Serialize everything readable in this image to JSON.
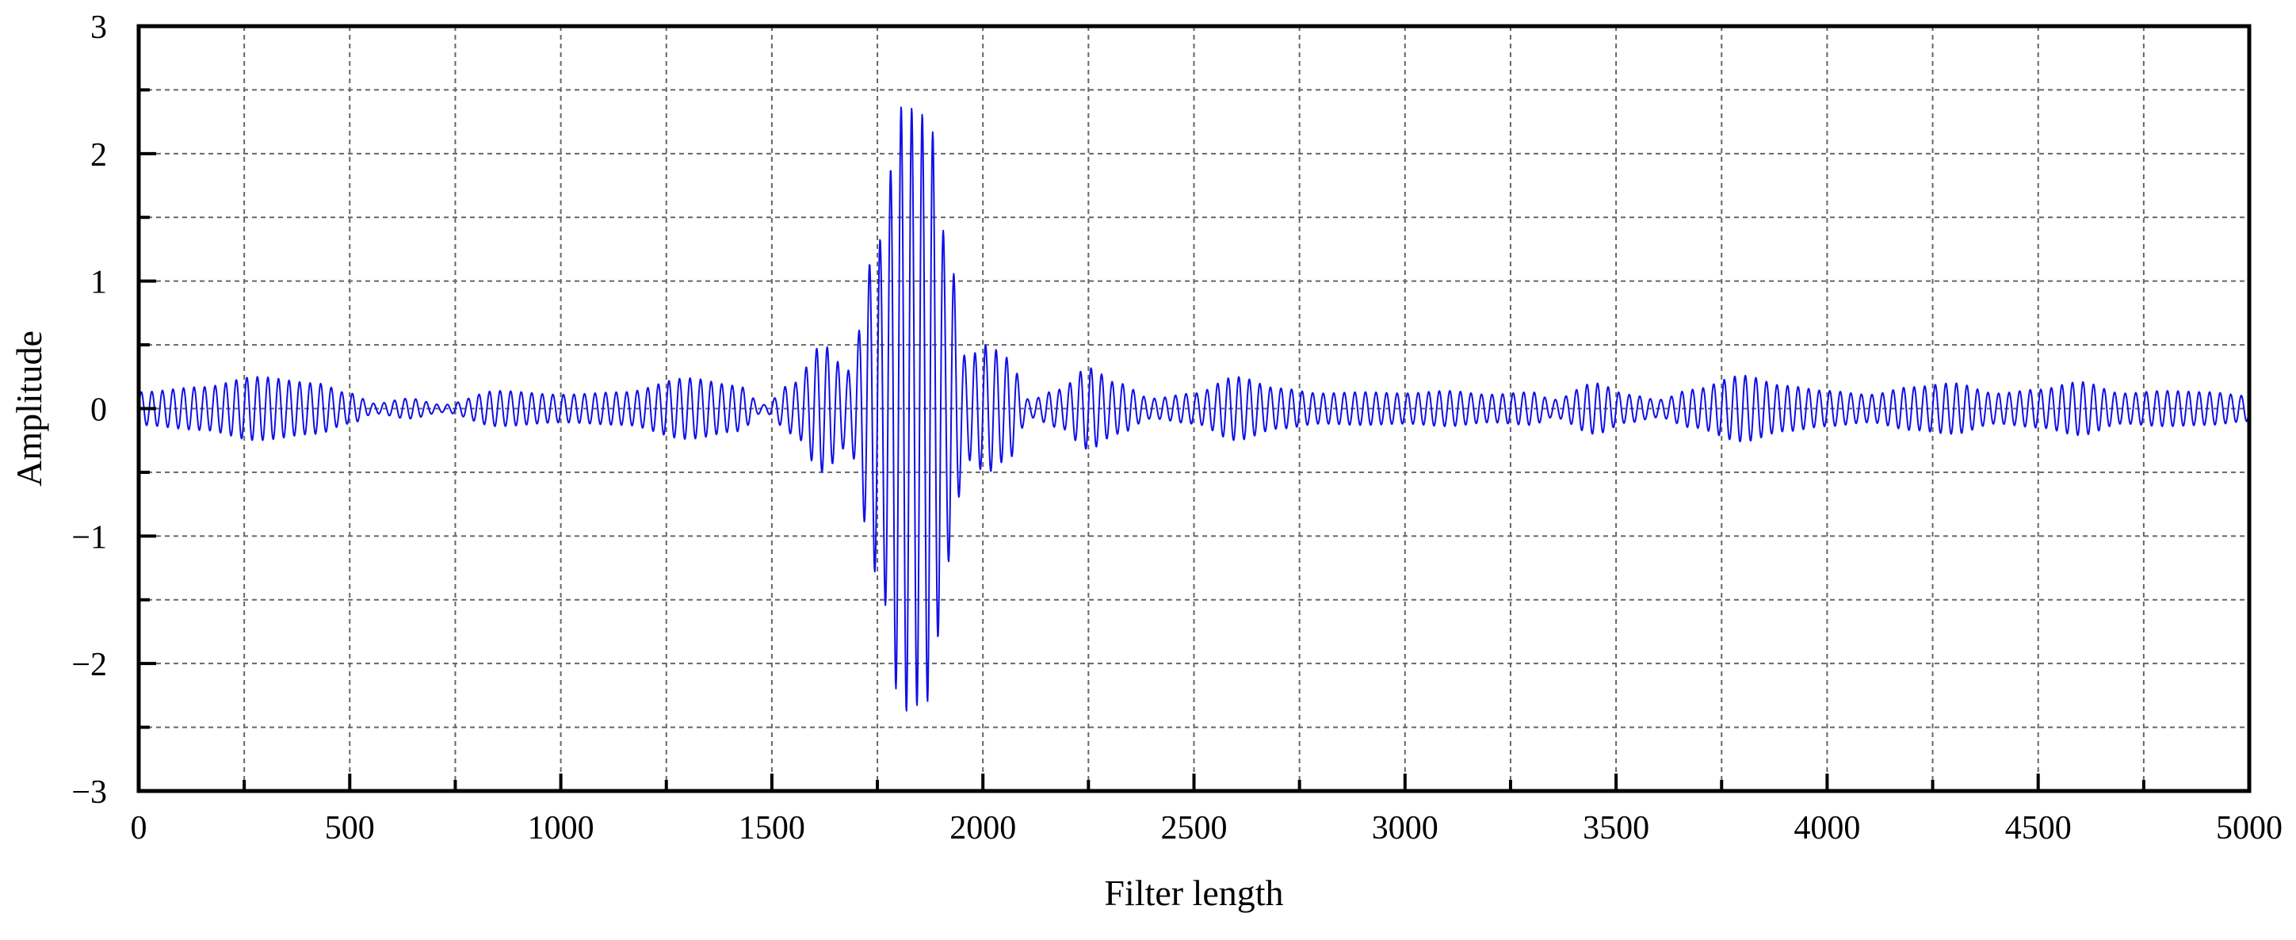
{
  "chart_data": {
    "type": "line",
    "title": "",
    "xlabel": "Filter length",
    "ylabel": "Amplitude",
    "xlim": [
      0,
      5000
    ],
    "ylim": [
      -3,
      3
    ],
    "xticks": [
      0,
      500,
      1000,
      1500,
      2000,
      2500,
      3000,
      3500,
      4000,
      4500,
      5000
    ],
    "xtick_labels": [
      "0",
      "500",
      "1000",
      "1500",
      "2000",
      "2500",
      "3000",
      "3500",
      "4000",
      "4500",
      "5000"
    ],
    "yticks": [
      3,
      2,
      1,
      0,
      -1,
      -2,
      -3
    ],
    "ytick_labels": [
      "3",
      "2",
      "1",
      "0",
      "−1",
      "−2",
      "−3"
    ],
    "grid": true,
    "legend": "none",
    "series": [
      {
        "color": "#1010e8",
        "oscillation_period": 25,
        "envelope_x": [
          0,
          150,
          280,
          420,
          500,
          560,
          640,
          720,
          850,
          1000,
          1150,
          1300,
          1420,
          1480,
          1550,
          1620,
          1680,
          1750,
          1810,
          1870,
          1920,
          1960,
          2010,
          2060,
          2110,
          2180,
          2250,
          2320,
          2400,
          2500,
          2600,
          2700,
          2800,
          2900,
          3000,
          3100,
          3200,
          3300,
          3350,
          3450,
          3530,
          3600,
          3680,
          3800,
          3900,
          4000,
          4100,
          4200,
          4300,
          4400,
          4500,
          4600,
          4700,
          4800,
          4900,
          5000
        ],
        "envelope_y": [
          0.13,
          0.17,
          0.25,
          0.2,
          0.12,
          0.04,
          0.08,
          0.03,
          0.14,
          0.11,
          0.13,
          0.24,
          0.18,
          0.03,
          0.2,
          0.5,
          0.3,
          1.3,
          2.38,
          2.3,
          1.2,
          0.4,
          0.5,
          0.4,
          0.07,
          0.15,
          0.32,
          0.2,
          0.08,
          0.12,
          0.25,
          0.16,
          0.12,
          0.13,
          0.12,
          0.14,
          0.11,
          0.13,
          0.07,
          0.2,
          0.11,
          0.07,
          0.15,
          0.26,
          0.18,
          0.14,
          0.11,
          0.17,
          0.2,
          0.12,
          0.15,
          0.21,
          0.12,
          0.14,
          0.13,
          0.1
        ]
      }
    ]
  }
}
